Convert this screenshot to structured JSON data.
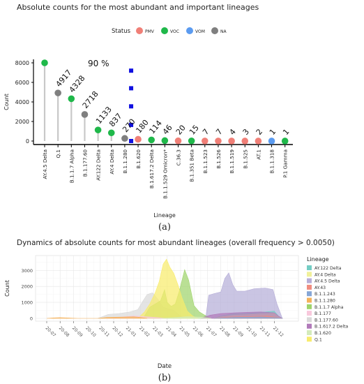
{
  "chart_data": [
    {
      "type": "lollipop",
      "title": "Absolute counts for the most abundant and important lineages",
      "legend_title": "Status",
      "legend": [
        {
          "name": "PMV",
          "color": "#f07f77"
        },
        {
          "name": "VOC",
          "color": "#1fb84a"
        },
        {
          "name": "VOM",
          "color": "#5b9bf0"
        },
        {
          "name": "NA",
          "color": "#7f7f7f"
        }
      ],
      "xlabel": "Lineage",
      "ylabel": "Count",
      "ylim": [
        0,
        8000
      ],
      "yticks": [
        "0",
        "2000",
        "4000",
        "6000",
        "8000"
      ],
      "categories": [
        "AY.4.5 Delta",
        "Q.1",
        "B.1.1.7 Alpha",
        "B.1.177.60",
        "AY.122 Delta",
        "AY.4 Delta",
        "B.1.1.280",
        "B.1.620",
        "B.1.617.2 Delta",
        "B.1.1.529 Omicron*",
        "C.36.3",
        "B.1.351 Beta",
        "B.1.1.523",
        "B.1.526",
        "B.1.1.519",
        "B.1.525",
        "AT.1",
        "B.1.1.318",
        "P.1 Gamma"
      ],
      "values": [
        8000,
        4917,
        4328,
        2718,
        1133,
        837,
        270,
        180,
        114,
        46,
        20,
        15,
        7,
        7,
        4,
        3,
        2,
        1,
        1
      ],
      "statuses": [
        "VOC",
        "NA",
        "VOC",
        "NA",
        "VOC",
        "VOC",
        "NA",
        "PMV",
        "VOC",
        "VOC",
        "PMV",
        "VOC",
        "PMV",
        "PMV",
        "PMV",
        "PMV",
        "PMV",
        "VOM",
        "VOC"
      ],
      "labels": [
        "",
        "4917",
        "4328",
        "2718",
        "1133",
        "837",
        "270",
        "180",
        "114",
        "46",
        "20",
        "15",
        "7",
        "7",
        "4",
        "3",
        "2",
        "1",
        "1"
      ],
      "cumulative_annotation": "90 %",
      "cumulative_marker_values": [
        7200,
        5400,
        3550,
        1650,
        0
      ],
      "cumulative_marker_color": "#1010e0",
      "caption": "(a)"
    },
    {
      "type": "area",
      "title": "Dynamics of absolute counts for most abundant lineages (overall frequency > 0.0050)",
      "xlabel": "Date",
      "ylabel": "Count",
      "ylim": [
        0,
        3800
      ],
      "yticks": [
        "0",
        "1000",
        "2000",
        "3000"
      ],
      "xticks": [
        "20-07",
        "20-08",
        "20-09",
        "20-10",
        "20-11",
        "20-12",
        "21-01",
        "21-02",
        "21-03",
        "21-04",
        "21-05",
        "21-06",
        "21-07",
        "21-08",
        "21-09",
        "21-10",
        "21-11",
        "21-12"
      ],
      "legend_title": "Lineage",
      "series": [
        {
          "name": "AY.122 Delta",
          "color": "#74cdc4",
          "points": [
            [
              12.5,
              0
            ],
            [
              13,
              150
            ],
            [
              14,
              300
            ],
            [
              15,
              320
            ],
            [
              16,
              380
            ],
            [
              17,
              450
            ],
            [
              17.3,
              150
            ],
            [
              17.6,
              0
            ]
          ]
        },
        {
          "name": "AY.4 Delta",
          "color": "#f0f09a",
          "points": [
            [
              12.5,
              0
            ],
            [
              13,
              100
            ],
            [
              14,
              200
            ],
            [
              15,
              230
            ],
            [
              16,
              280
            ],
            [
              17,
              300
            ],
            [
              17.3,
              100
            ],
            [
              17.6,
              0
            ]
          ]
        },
        {
          "name": "AY.4.5 Delta",
          "color": "#b6aed8",
          "points": [
            [
              11.6,
              0
            ],
            [
              11.9,
              200
            ],
            [
              12.1,
              1450
            ],
            [
              12.5,
              1550
            ],
            [
              13,
              1650
            ],
            [
              13.3,
              2500
            ],
            [
              13.6,
              2850
            ],
            [
              13.9,
              2100
            ],
            [
              14.2,
              1700
            ],
            [
              14.8,
              1700
            ],
            [
              15.5,
              1850
            ],
            [
              16.3,
              1900
            ],
            [
              16.9,
              1800
            ],
            [
              17.2,
              900
            ],
            [
              17.6,
              0
            ]
          ]
        },
        {
          "name": "AY.43",
          "color": "#f08c80",
          "points": [
            [
              12.5,
              0
            ],
            [
              13.5,
              80
            ],
            [
              15,
              120
            ],
            [
              16.5,
              150
            ],
            [
              17.2,
              60
            ],
            [
              17.6,
              0
            ]
          ]
        },
        {
          "name": "B.1.1.243",
          "color": "#86a6d6",
          "points": [
            [
              12.5,
              0
            ],
            [
              14,
              60
            ],
            [
              16,
              90
            ],
            [
              17.2,
              40
            ],
            [
              17.6,
              0
            ]
          ]
        },
        {
          "name": "B.1.1.280",
          "color": "#f5b25a",
          "points": [
            [
              0,
              0
            ],
            [
              0.5,
              30
            ],
            [
              1,
              50
            ],
            [
              1.5,
              30
            ],
            [
              2.3,
              0
            ],
            [
              3.8,
              0
            ],
            [
              4.5,
              60
            ],
            [
              5.5,
              80
            ],
            [
              6.5,
              100
            ],
            [
              7,
              60
            ],
            [
              7.5,
              0
            ]
          ]
        },
        {
          "name": "B.1.1.7 Alpha",
          "color": "#9fd46c",
          "points": [
            [
              7.2,
              0
            ],
            [
              7.7,
              700
            ],
            [
              8.1,
              900
            ],
            [
              8.5,
              1100
            ],
            [
              8.8,
              1800
            ],
            [
              9.0,
              1000
            ],
            [
              9.3,
              750
            ],
            [
              9.6,
              900
            ],
            [
              9.9,
              1700
            ],
            [
              10.3,
              3050
            ],
            [
              10.6,
              2400
            ],
            [
              11.0,
              800
            ],
            [
              11.4,
              400
            ],
            [
              11.8,
              200
            ],
            [
              12.2,
              0
            ]
          ]
        },
        {
          "name": "B.1.177",
          "color": "#f8c8dc",
          "points": [
            [
              4.5,
              0
            ],
            [
              5.5,
              80
            ],
            [
              6.5,
              150
            ],
            [
              7.5,
              100
            ],
            [
              8.3,
              50
            ],
            [
              9,
              0
            ]
          ]
        },
        {
          "name": "B.1.177.60",
          "color": "#d9d9d9",
          "points": [
            [
              3.8,
              0
            ],
            [
              4.6,
              250
            ],
            [
              5.4,
              300
            ],
            [
              6.2,
              400
            ],
            [
              6.8,
              550
            ],
            [
              7.2,
              1100
            ],
            [
              7.5,
              1500
            ],
            [
              7.9,
              1600
            ],
            [
              8.3,
              1200
            ],
            [
              8.7,
              700
            ],
            [
              9.1,
              600
            ],
            [
              9.5,
              500
            ],
            [
              9.9,
              200
            ],
            [
              10.3,
              0
            ]
          ]
        },
        {
          "name": "B.1.617.2 Delta",
          "color": "#b17aba",
          "points": [
            [
              11.5,
              0
            ],
            [
              12.2,
              200
            ],
            [
              13,
              300
            ],
            [
              14,
              350
            ],
            [
              15,
              380
            ],
            [
              16,
              400
            ],
            [
              17,
              350
            ],
            [
              17.3,
              150
            ],
            [
              17.6,
              0
            ]
          ]
        },
        {
          "name": "B.1.620",
          "color": "#d4ebbb",
          "points": [
            [
              8.5,
              0
            ],
            [
              9.5,
              50
            ],
            [
              10.5,
              100
            ],
            [
              11.5,
              80
            ],
            [
              12.3,
              0
            ]
          ]
        },
        {
          "name": "Q.1",
          "color": "#f8ec6c",
          "points": [
            [
              6.8,
              0
            ],
            [
              7.3,
              400
            ],
            [
              7.7,
              900
            ],
            [
              8.1,
              1600
            ],
            [
              8.4,
              2300
            ],
            [
              8.7,
              3400
            ],
            [
              8.95,
              3700
            ],
            [
              9.2,
              3200
            ],
            [
              9.5,
              2800
            ],
            [
              9.8,
              2100
            ],
            [
              10.1,
              1300
            ],
            [
              10.5,
              450
            ],
            [
              10.9,
              150
            ],
            [
              11.3,
              0
            ]
          ]
        }
      ],
      "caption": "(b)"
    }
  ]
}
